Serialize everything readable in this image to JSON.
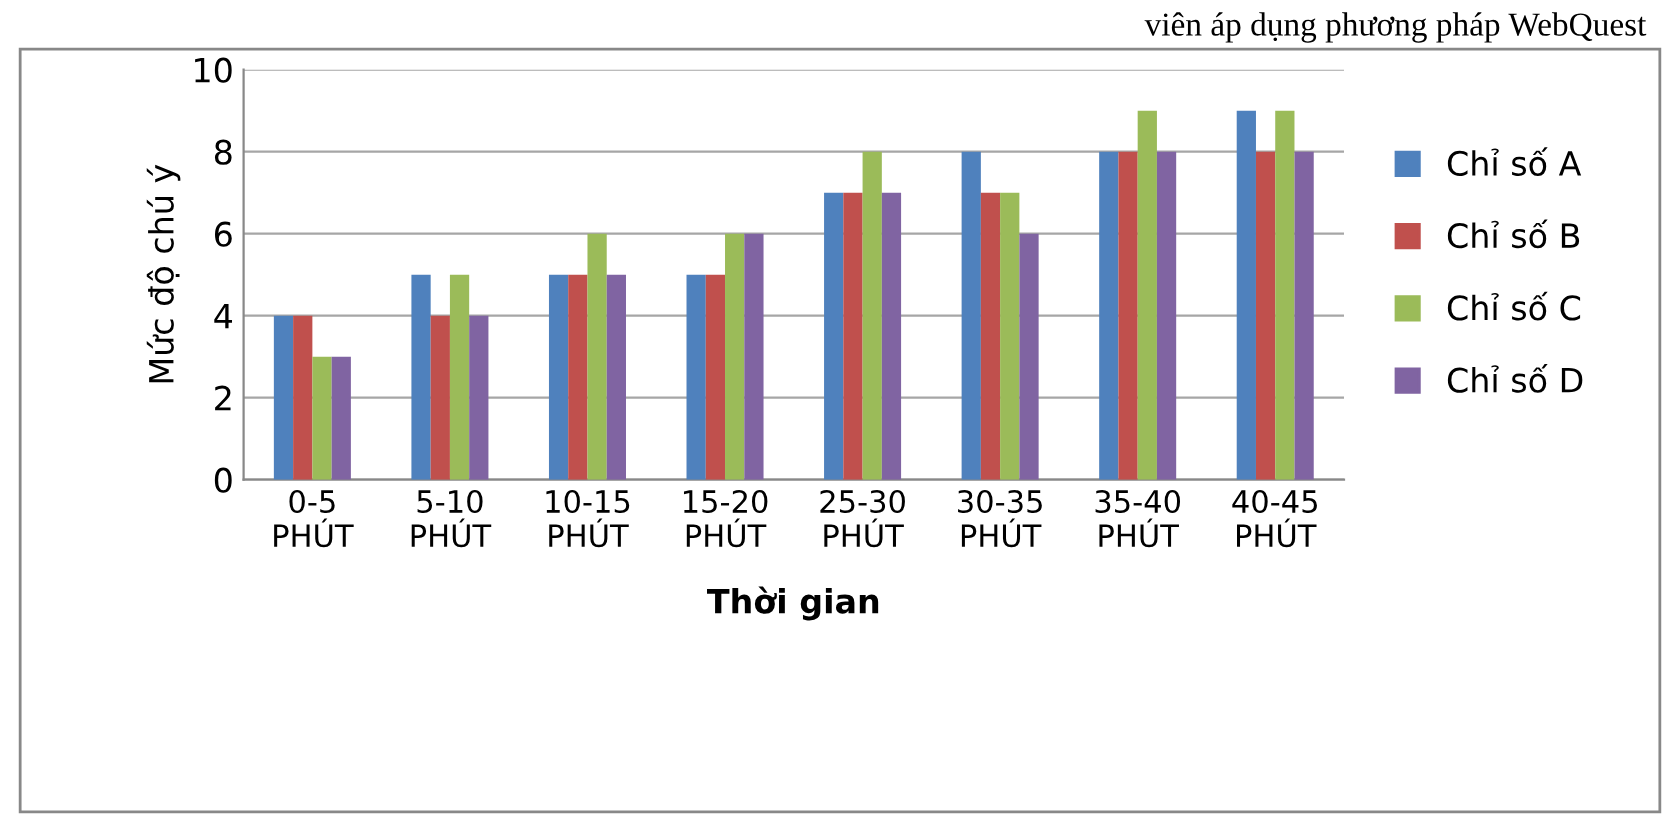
{
  "chart_data": {
    "type": "bar",
    "xlabel": "Thời gian",
    "ylabel": "Mức độ chú ý",
    "annotations": [
      "viên áp dụng phương pháp WebQuest"
    ],
    "categories": [
      "0-5\nPHÚT",
      "5-10\nPHÚT",
      "10-15\nPHÚT",
      "15-20\nPHÚT",
      "25-30\nPHÚT",
      "30-35\nPHÚT",
      "35-40\nPHÚT",
      "40-45\nPHÚT"
    ],
    "series": [
      {
        "name": "Chỉ số A",
        "color": "#4f81bd",
        "values": [
          4,
          5,
          5,
          5,
          7,
          8,
          8,
          9
        ]
      },
      {
        "name": "Chỉ số B",
        "color": "#c0504d",
        "values": [
          4,
          4,
          5,
          5,
          7,
          7,
          8,
          8
        ]
      },
      {
        "name": "Chỉ số C",
        "color": "#9bbb59",
        "values": [
          3,
          5,
          6,
          6,
          8,
          7,
          9,
          9
        ]
      },
      {
        "name": "Chỉ số D",
        "color": "#8064a2",
        "values": [
          3,
          4,
          5,
          6,
          7,
          6,
          8,
          8
        ]
      }
    ],
    "ylim": [
      0,
      10
    ],
    "yticks": [
      0,
      2,
      4,
      6,
      8,
      10
    ],
    "grid": "y",
    "legend": "right"
  }
}
